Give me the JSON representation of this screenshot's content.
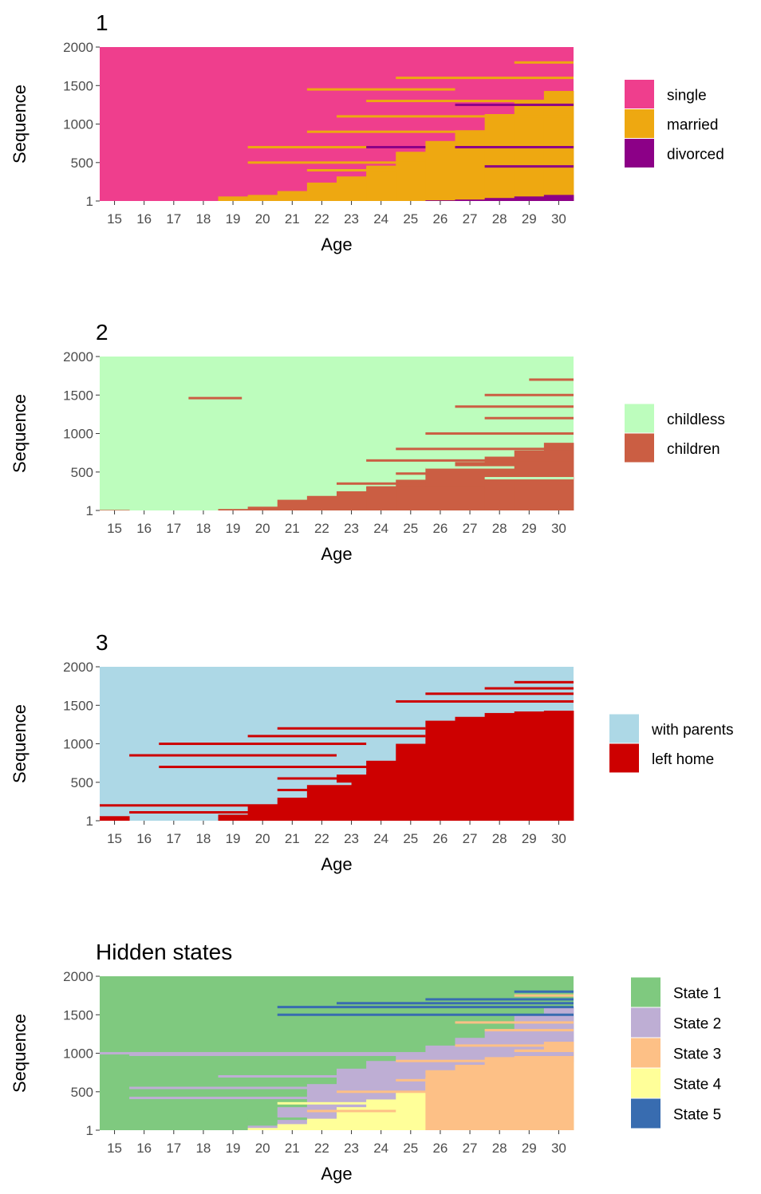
{
  "chart_data": [
    {
      "type": "heatmap",
      "title": "1",
      "xlabel": "Age",
      "ylabel": "Sequence",
      "x_ticks": [
        "15",
        "16",
        "17",
        "18",
        "19",
        "20",
        "21",
        "22",
        "23",
        "24",
        "25",
        "26",
        "27",
        "28",
        "29",
        "30"
      ],
      "y_ticks": [
        "1",
        "500",
        "1000",
        "1500",
        "2000"
      ],
      "ylim": [
        1,
        2000
      ],
      "legend_position": "right",
      "states": [
        {
          "name": "single",
          "color": "#EF3E8D"
        },
        {
          "name": "married",
          "color": "#EEA811"
        },
        {
          "name": "divorced",
          "color": "#8C0087"
        }
      ],
      "background_state": 0,
      "regions": [
        {
          "state": 1,
          "thresholds": [
            [
              19,
              60
            ],
            [
              20,
              80
            ],
            [
              21,
              130
            ],
            [
              22,
              240
            ],
            [
              23,
              320
            ],
            [
              24,
              460
            ],
            [
              25,
              640
            ],
            [
              26,
              780
            ],
            [
              27,
              920
            ],
            [
              28,
              1130
            ],
            [
              29,
              1300
            ],
            [
              30,
              1430
            ]
          ]
        },
        {
          "state": 2,
          "thresholds": [
            [
              26,
              10
            ],
            [
              27,
              20
            ],
            [
              28,
              40
            ],
            [
              29,
              60
            ],
            [
              30,
              80
            ]
          ]
        }
      ],
      "lines": [
        {
          "state": 1,
          "y": 1450,
          "start": 22,
          "end": 26
        },
        {
          "state": 1,
          "y": 1600,
          "start": 25,
          "end": 30
        },
        {
          "state": 1,
          "y": 1800,
          "start": 29,
          "end": 30
        },
        {
          "state": 1,
          "y": 1300,
          "start": 24,
          "end": 30
        },
        {
          "state": 1,
          "y": 1100,
          "start": 23,
          "end": 30
        },
        {
          "state": 1,
          "y": 900,
          "start": 22,
          "end": 26
        },
        {
          "state": 1,
          "y": 700,
          "start": 20,
          "end": 24
        },
        {
          "state": 1,
          "y": 500,
          "start": 20,
          "end": 25
        },
        {
          "state": 1,
          "y": 400,
          "start": 22,
          "end": 24
        },
        {
          "state": 2,
          "y": 1250,
          "start": 27,
          "end": 30
        },
        {
          "state": 2,
          "y": 700,
          "start": 24,
          "end": 25
        },
        {
          "state": 2,
          "y": 700,
          "start": 27,
          "end": 30
        },
        {
          "state": 2,
          "y": 450,
          "start": 28,
          "end": 30
        }
      ]
    },
    {
      "type": "heatmap",
      "title": "2",
      "xlabel": "Age",
      "ylabel": "Sequence",
      "x_ticks": [
        "15",
        "16",
        "17",
        "18",
        "19",
        "20",
        "21",
        "22",
        "23",
        "24",
        "25",
        "26",
        "27",
        "28",
        "29",
        "30"
      ],
      "y_ticks": [
        "1",
        "500",
        "1000",
        "1500",
        "2000"
      ],
      "ylim": [
        1,
        2000
      ],
      "legend_position": "right",
      "states": [
        {
          "name": "childless",
          "color": "#BDFDBD"
        },
        {
          "name": "children",
          "color": "#CB5E43"
        }
      ],
      "background_state": 0,
      "regions": [
        {
          "state": 1,
          "thresholds": [
            [
              15,
              8
            ],
            [
              19,
              20
            ],
            [
              20,
              50
            ],
            [
              21,
              140
            ],
            [
              22,
              190
            ],
            [
              23,
              250
            ],
            [
              24,
              300
            ],
            [
              25,
              400
            ],
            [
              26,
              560
            ],
            [
              27,
              630
            ],
            [
              28,
              700
            ],
            [
              29,
              780
            ],
            [
              30,
              880
            ]
          ]
        }
      ],
      "lines": [
        {
          "state": 1,
          "y": 1460,
          "start": 18,
          "end": 18.8
        },
        {
          "state": 1,
          "y": 1700,
          "start": 29.5,
          "end": 30
        },
        {
          "state": 1,
          "y": 1500,
          "start": 28,
          "end": 30
        },
        {
          "state": 1,
          "y": 1350,
          "start": 27,
          "end": 30
        },
        {
          "state": 1,
          "y": 1200,
          "start": 28,
          "end": 30
        },
        {
          "state": 1,
          "y": 1000,
          "start": 26,
          "end": 30
        },
        {
          "state": 1,
          "y": 800,
          "start": 25,
          "end": 30
        },
        {
          "state": 1,
          "y": 650,
          "start": 24,
          "end": 30
        },
        {
          "state": 1,
          "y": 480,
          "start": 25,
          "end": 26
        },
        {
          "state": 1,
          "y": 350,
          "start": 23,
          "end": 25
        },
        {
          "state": 1,
          "y": 300,
          "start": 24,
          "end": 27
        },
        {
          "state": 0,
          "y": 420,
          "start": 28,
          "end": 30
        },
        {
          "state": 0,
          "y": 560,
          "start": 26,
          "end": 28
        }
      ]
    },
    {
      "type": "heatmap",
      "title": "3",
      "xlabel": "Age",
      "ylabel": "Sequence",
      "x_ticks": [
        "15",
        "16",
        "17",
        "18",
        "19",
        "20",
        "21",
        "22",
        "23",
        "24",
        "25",
        "26",
        "27",
        "28",
        "29",
        "30"
      ],
      "y_ticks": [
        "1",
        "500",
        "1000",
        "1500",
        "2000"
      ],
      "ylim": [
        1,
        2000
      ],
      "legend_position": "right",
      "states": [
        {
          "name": "with parents",
          "color": "#ADD8E6"
        },
        {
          "name": "left home",
          "color": "#CD0000"
        }
      ],
      "background_state": 0,
      "regions": [
        {
          "state": 1,
          "thresholds": [
            [
              15,
              60
            ],
            [
              19,
              80
            ],
            [
              20,
              200
            ],
            [
              21,
              300
            ],
            [
              22,
              480
            ],
            [
              23,
              600
            ],
            [
              24,
              780
            ],
            [
              25,
              1000
            ],
            [
              26,
              1300
            ],
            [
              27,
              1350
            ],
            [
              28,
              1400
            ],
            [
              29,
              1420
            ],
            [
              30,
              1430
            ]
          ]
        }
      ],
      "lines": [
        {
          "state": 1,
          "y": 200,
          "start": 15,
          "end": 21
        },
        {
          "state": 1,
          "y": 110,
          "start": 16,
          "end": 21
        },
        {
          "state": 1,
          "y": 850,
          "start": 16,
          "end": 22
        },
        {
          "state": 1,
          "y": 1000,
          "start": 17,
          "end": 23
        },
        {
          "state": 1,
          "y": 700,
          "start": 17,
          "end": 25
        },
        {
          "state": 1,
          "y": 1100,
          "start": 20,
          "end": 25
        },
        {
          "state": 1,
          "y": 1200,
          "start": 21,
          "end": 25
        },
        {
          "state": 1,
          "y": 1650,
          "start": 26,
          "end": 30
        },
        {
          "state": 1,
          "y": 1550,
          "start": 25,
          "end": 30
        },
        {
          "state": 1,
          "y": 1800,
          "start": 29,
          "end": 30
        },
        {
          "state": 1,
          "y": 1720,
          "start": 28,
          "end": 30
        },
        {
          "state": 1,
          "y": 550,
          "start": 21,
          "end": 24
        },
        {
          "state": 1,
          "y": 400,
          "start": 21,
          "end": 23
        },
        {
          "state": 0,
          "y": 650,
          "start": 20,
          "end": 23
        },
        {
          "state": 0,
          "y": 480,
          "start": 21,
          "end": 22.5
        }
      ]
    },
    {
      "type": "heatmap",
      "title": "Hidden states",
      "xlabel": "Age",
      "ylabel": "Sequence",
      "x_ticks": [
        "15",
        "16",
        "17",
        "18",
        "19",
        "20",
        "21",
        "22",
        "23",
        "24",
        "25",
        "26",
        "27",
        "28",
        "29",
        "30"
      ],
      "y_ticks": [
        "1",
        "500",
        "1000",
        "1500",
        "2000"
      ],
      "ylim": [
        1,
        2000
      ],
      "legend_position": "right",
      "states": [
        {
          "name": "State 1",
          "color": "#7FC97F"
        },
        {
          "name": "State 2",
          "color": "#BEAED4"
        },
        {
          "name": "State 3",
          "color": "#FDC086"
        },
        {
          "name": "State 4",
          "color": "#FFFF99"
        },
        {
          "name": "State 5",
          "color": "#386CB0"
        }
      ],
      "background_state": 0,
      "regions": [
        {
          "state": 1,
          "thresholds": [
            [
              20,
              60
            ],
            [
              21,
              300
            ],
            [
              22,
              600
            ],
            [
              23,
              800
            ],
            [
              24,
              900
            ],
            [
              25,
              1000
            ],
            [
              26,
              1100
            ],
            [
              27,
              1200
            ],
            [
              28,
              1300
            ],
            [
              29,
              1500
            ],
            [
              30,
              1600
            ]
          ]
        },
        {
          "state": 3,
          "thresholds": [
            [
              20,
              30
            ],
            [
              21,
              80
            ],
            [
              22,
              150
            ],
            [
              23,
              300
            ],
            [
              24,
              400
            ],
            [
              25,
              500
            ],
            [
              26,
              700
            ],
            [
              27,
              750
            ],
            [
              28,
              800
            ],
            [
              29,
              850
            ],
            [
              30,
              880
            ]
          ]
        },
        {
          "state": 2,
          "thresholds": [
            [
              26,
              780
            ],
            [
              27,
              850
            ],
            [
              28,
              950
            ],
            [
              29,
              1050
            ],
            [
              30,
              1150
            ]
          ]
        }
      ],
      "lines": [
        {
          "state": 1,
          "y": 1000,
          "start": 15,
          "end": 30
        },
        {
          "state": 1,
          "y": 980,
          "start": 16,
          "end": 30
        },
        {
          "state": 1,
          "y": 550,
          "start": 16,
          "end": 24
        },
        {
          "state": 1,
          "y": 420,
          "start": 16,
          "end": 23
        },
        {
          "state": 1,
          "y": 700,
          "start": 19,
          "end": 25
        },
        {
          "state": 4,
          "y": 1600,
          "start": 21,
          "end": 30
        },
        {
          "state": 4,
          "y": 1500,
          "start": 21,
          "end": 30
        },
        {
          "state": 4,
          "y": 1650,
          "start": 23,
          "end": 30
        },
        {
          "state": 4,
          "y": 1700,
          "start": 26,
          "end": 30
        },
        {
          "state": 4,
          "y": 1800,
          "start": 29,
          "end": 30
        },
        {
          "state": 2,
          "y": 1750,
          "start": 29,
          "end": 30
        },
        {
          "state": 2,
          "y": 1400,
          "start": 27,
          "end": 30
        },
        {
          "state": 2,
          "y": 1300,
          "start": 28,
          "end": 30
        },
        {
          "state": 2,
          "y": 1100,
          "start": 27,
          "end": 30
        },
        {
          "state": 2,
          "y": 900,
          "start": 25,
          "end": 30
        },
        {
          "state": 2,
          "y": 650,
          "start": 25,
          "end": 30
        },
        {
          "state": 2,
          "y": 500,
          "start": 23,
          "end": 26
        },
        {
          "state": 2,
          "y": 250,
          "start": 22,
          "end": 24
        },
        {
          "state": 3,
          "y": 350,
          "start": 21,
          "end": 24
        },
        {
          "state": 0,
          "y": 150,
          "start": 20,
          "end": 21
        }
      ]
    }
  ]
}
